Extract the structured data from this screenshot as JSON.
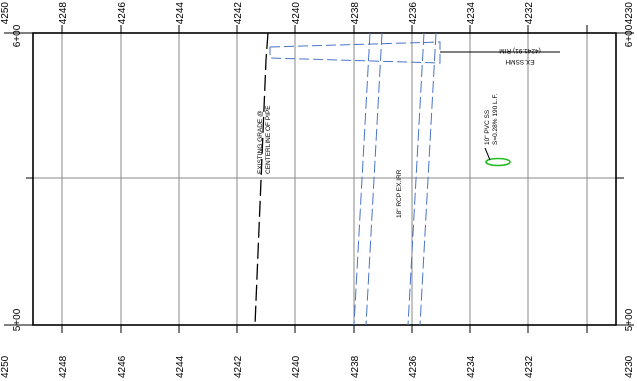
{
  "profile": {
    "top_axis_labels": [
      "4250",
      "4248",
      "4246",
      "4244",
      "4242",
      "4240",
      "4238",
      "4236",
      "4234",
      "4232",
      "4230"
    ],
    "bottom_axis_labels": [
      "4250",
      "4248",
      "4246",
      "4244",
      "4242",
      "4240",
      "4238",
      "4236",
      "4234",
      "4232",
      "4230"
    ],
    "station_top": "6+00",
    "station_bottom": "5+00",
    "annotations": {
      "existing_grade_line1": "EXISTING GRADE @",
      "existing_grade_line2": "CENTERLINE OF PIPE",
      "rcp_label": "18\" RCP EX.IRR",
      "pvc_line1": "10\" PVC SS",
      "pvc_line2": "S=0.28% 190 L.F.",
      "manhole_line1": "EX.SSMH",
      "manhole_line2": "(4241.91) RIM"
    },
    "colors": {
      "grid": "#8a8a8a",
      "border": "#000000",
      "pipe": "#4a74c9",
      "marker": "#22bb22"
    }
  }
}
